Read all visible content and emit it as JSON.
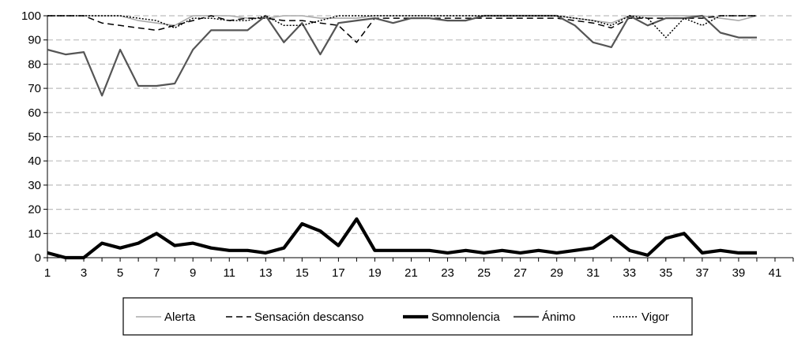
{
  "chart_data": {
    "type": "line",
    "title": "",
    "xlabel": "",
    "ylabel": "",
    "x": [
      1,
      2,
      3,
      4,
      5,
      6,
      7,
      8,
      9,
      10,
      11,
      12,
      13,
      14,
      15,
      16,
      17,
      18,
      19,
      20,
      21,
      22,
      23,
      24,
      25,
      26,
      27,
      28,
      29,
      30,
      31,
      32,
      33,
      34,
      35,
      36,
      37,
      38,
      39,
      40
    ],
    "x_tick_labels": [
      "1",
      "3",
      "5",
      "7",
      "9",
      "11",
      "13",
      "15",
      "17",
      "19",
      "21",
      "23",
      "25",
      "27",
      "29",
      "31",
      "33",
      "35",
      "37",
      "39",
      "41"
    ],
    "xlim": [
      1,
      42
    ],
    "ylim": [
      0,
      100
    ],
    "y_ticks": [
      0,
      10,
      20,
      30,
      40,
      50,
      60,
      70,
      80,
      90,
      100
    ],
    "grid": "horizontal-dashed",
    "legend_position": "bottom",
    "series": [
      {
        "name": "Alerta",
        "color": "#aaaaaa",
        "style": "solid-thin",
        "values": [
          100,
          100,
          100,
          100,
          100,
          98,
          97,
          96,
          100,
          100,
          100,
          99,
          99,
          100,
          100,
          99,
          99,
          99,
          100,
          100,
          100,
          100,
          100,
          100,
          100,
          100,
          100,
          100,
          100,
          99,
          98,
          97,
          100,
          100,
          100,
          100,
          100,
          99,
          98,
          100
        ]
      },
      {
        "name": "Sensación descanso",
        "color": "#000000",
        "style": "dashed",
        "values": [
          100,
          100,
          100,
          97,
          96,
          95,
          94,
          96,
          98,
          100,
          98,
          99,
          99,
          98,
          98,
          97,
          96,
          89,
          99,
          99,
          99,
          99,
          99,
          99,
          99,
          99,
          99,
          99,
          99,
          98,
          97,
          95,
          99,
          99,
          99,
          99,
          99,
          100,
          100,
          100
        ]
      },
      {
        "name": "Somnolencia",
        "color": "#000000",
        "style": "solid-thick",
        "values": [
          2,
          0,
          0,
          6,
          4,
          6,
          10,
          5,
          6,
          4,
          3,
          3,
          2,
          4,
          14,
          11,
          5,
          16,
          3,
          3,
          3,
          3,
          2,
          3,
          2,
          3,
          2,
          3,
          2,
          3,
          4,
          9,
          3,
          1,
          8,
          10,
          2,
          3,
          2,
          2
        ]
      },
      {
        "name": "Ánimo",
        "color": "#555555",
        "style": "solid-medium",
        "values": [
          86,
          84,
          85,
          67,
          86,
          71,
          71,
          72,
          86,
          94,
          94,
          94,
          100,
          89,
          97,
          84,
          97,
          98,
          99,
          97,
          99,
          99,
          98,
          98,
          100,
          100,
          100,
          100,
          100,
          96,
          89,
          87,
          100,
          96,
          99,
          99,
          100,
          93,
          91,
          91
        ]
      },
      {
        "name": "Vigor",
        "color": "#000000",
        "style": "dotted",
        "values": [
          100,
          100,
          100,
          100,
          100,
          99,
          98,
          95,
          99,
          99,
          98,
          98,
          100,
          96,
          96,
          98,
          100,
          100,
          100,
          100,
          100,
          100,
          100,
          100,
          100,
          100,
          100,
          100,
          100,
          99,
          98,
          96,
          100,
          99,
          91,
          99,
          96,
          100,
          100,
          100
        ]
      }
    ]
  }
}
